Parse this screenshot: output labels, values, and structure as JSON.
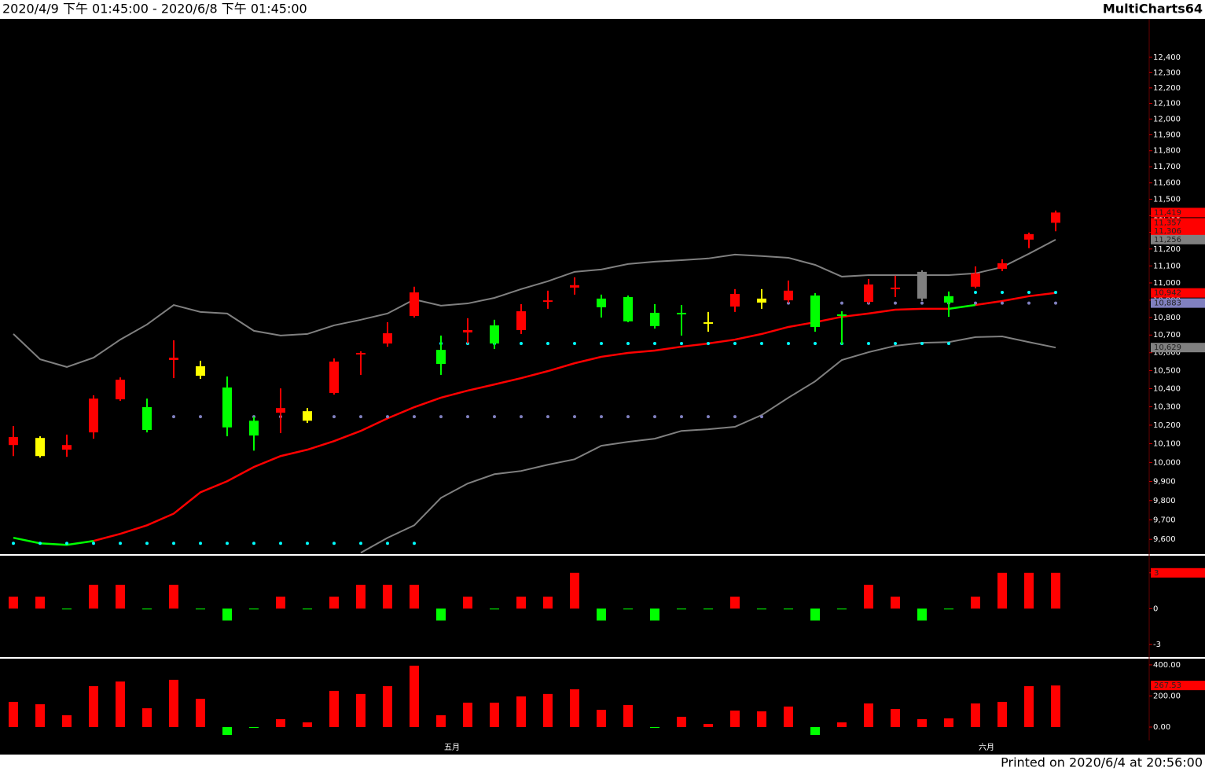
{
  "header": {
    "range": "2020/4/9 下午 01:45:00 - 2020/6/8 下午 01:45:00",
    "brand": "MultiCharts64"
  },
  "footer": "Printed on 2020/6/4 at 20:56:00",
  "chart_data": [
    {
      "type": "candlestick",
      "log": true,
      "ylim": [
        9525,
        12645
      ],
      "categories": [
        null,
        null,
        null,
        null,
        null,
        null,
        null,
        null,
        null,
        null,
        null,
        null,
        null,
        null,
        null,
        null,
        "五月",
        null,
        null,
        null,
        null,
        null,
        null,
        null,
        null,
        null,
        null,
        null,
        null,
        null,
        null,
        null,
        null,
        null,
        null,
        null,
        "六月",
        null,
        null,
        null
      ],
      "open": [
        10093,
        10131,
        10068,
        10161,
        10341,
        10298,
        10559,
        10524,
        10406,
        10224,
        10268,
        10276,
        10376,
        10590,
        10652,
        10809,
        10616,
        10715,
        10755,
        10728,
        10890,
        10973,
        10909,
        10918,
        10827,
        10827,
        10773,
        10863,
        10909,
        10899,
        10927,
        10818,
        10890,
        10964,
        11065,
        10923,
        10978,
        11083,
        11256,
        11357
      ],
      "high": [
        10195,
        10140,
        10149,
        10363,
        10462,
        10345,
        10670,
        10555,
        10467,
        10246,
        10401,
        10293,
        10568,
        10608,
        10773,
        10978,
        10697,
        10796,
        10787,
        10877,
        10955,
        11033,
        10932,
        10927,
        10877,
        10872,
        10832,
        10964,
        10964,
        11014,
        10941,
        10836,
        11023,
        11042,
        11074,
        10950,
        11097,
        11139,
        11298,
        11431
      ],
      "low": [
        10034,
        10026,
        10030,
        10127,
        10332,
        10161,
        10458,
        10454,
        10140,
        10063,
        10157,
        10212,
        10367,
        10476,
        10634,
        10800,
        10476,
        10652,
        10621,
        10706,
        10850,
        10932,
        10800,
        10773,
        10737,
        10697,
        10719,
        10832,
        10850,
        10886,
        10719,
        10647,
        10881,
        10918,
        10895,
        10804,
        10969,
        11069,
        11205,
        11306
      ],
      "close": [
        10136,
        10034,
        10093,
        10345,
        10449,
        10174,
        10572,
        10471,
        10188,
        10144,
        10293,
        10224,
        10550,
        10599,
        10710,
        10945,
        10537,
        10728,
        10652,
        10836,
        10899,
        10987,
        10859,
        10778,
        10751,
        10823,
        10764,
        10936,
        10886,
        10955,
        10746,
        10809,
        10991,
        10973,
        10909,
        10886,
        11056,
        11116,
        11289,
        11419
      ],
      "colors": [
        "#ff0000",
        "#ffff00",
        "#ff0000",
        "#ff0000",
        "#ff0000",
        "#00ff00",
        "#ff0000",
        "#ffff00",
        "#00ff00",
        "#00ff00",
        "#ff0000",
        "#ffff00",
        "#ff0000",
        "#ff0000",
        "#ff0000",
        "#ff0000",
        "#00ff00",
        "#ff0000",
        "#00ff00",
        "#ff0000",
        "#ff0000",
        "#ff0000",
        "#00ff00",
        "#00ff00",
        "#00ff00",
        "#00ff00",
        "#ffff00",
        "#ff0000",
        "#ffff00",
        "#ff0000",
        "#00ff00",
        "#00ff00",
        "#ff0000",
        "#ff0000",
        "#808080",
        "#00ff00",
        "#ff0000",
        "#ff0000",
        "#ff0000",
        "#ff0000"
      ],
      "bands": [
        {
          "color": "#808080",
          "values": [
            10706,
            10563,
            10520,
            10572,
            10674,
            10760,
            10872,
            10832,
            10823,
            10724,
            10697,
            10706,
            10755,
            10787,
            10823,
            10904,
            10868,
            10881,
            10913,
            10964,
            11010,
            11065,
            11079,
            11111,
            11125,
            11134,
            11144,
            11167,
            11158,
            11148,
            11106,
            11037,
            11046,
            11046,
            11046,
            11046,
            11056,
            11093,
            11172,
            11256
          ]
        },
        {
          "color": "#808080",
          "values": [
            null,
            null,
            null,
            null,
            null,
            null,
            null,
            null,
            null,
            null,
            null,
            null,
            null,
            9532,
            9608,
            9672,
            9814,
            9889,
            9938,
            9955,
            9988,
            10017,
            10089,
            10110,
            10127,
            10169,
            10178,
            10191,
            10255,
            10350,
            10440,
            10559,
            10603,
            10639,
            10656,
            10660,
            10688,
            10692,
            10660,
            10629
          ]
        }
      ],
      "middle": {
        "values": [
          9608,
          9580,
          9572,
          9592,
          9628,
          9672,
          9732,
          9843,
          9901,
          9976,
          10034,
          10068,
          10114,
          10169,
          10237,
          10298,
          10350,
          10389,
          10423,
          10458,
          10497,
          10541,
          10577,
          10599,
          10612,
          10634,
          10652,
          10674,
          10706,
          10746,
          10773,
          10804,
          10823,
          10845,
          10850,
          10850,
          10872,
          10895,
          10923,
          10942
        ],
        "colors": [
          "#00ff00",
          "#00ff00",
          "#00ff00",
          "#00ff00",
          "#ff0000",
          "#ff0000",
          "#ff0000",
          "#ff0000",
          "#ff0000",
          "#ff0000",
          "#ff0000",
          "#ff0000",
          "#ff0000",
          "#ff0000",
          "#ff0000",
          "#ff0000",
          "#ff0000",
          "#ff0000",
          "#ff0000",
          "#ff0000",
          "#ff0000",
          "#ff0000",
          "#ff0000",
          "#ff0000",
          "#ff0000",
          "#ff0000",
          "#ff0000",
          "#ff0000",
          "#ff0000",
          "#ff0000",
          "#ff0000",
          "#ff0000",
          "#ff0000",
          "#ff0000",
          "#ff0000",
          "#ff0000",
          "#00ff00",
          "#ff0000",
          "#ff0000",
          "#ff0000"
        ]
      },
      "dots": [
        {
          "color": "#00ffff",
          "values": [
            9580,
            9580,
            9580,
            9580,
            9580,
            9580,
            9580,
            9580,
            9580,
            9580,
            9580,
            9580,
            9580,
            9580,
            9580,
            9580,
            10652,
            10652,
            10652,
            10652,
            10652,
            10652,
            10652,
            10652,
            10652,
            10652,
            10652,
            10652,
            10652,
            10652,
            10652,
            10652,
            10652,
            10652,
            10652,
            10652,
            10945,
            10945,
            10945,
            10945
          ]
        },
        {
          "color": "#8080c0",
          "values": [
            null,
            null,
            null,
            null,
            null,
            10246,
            10246,
            10246,
            10246,
            10246,
            10246,
            10246,
            10246,
            10246,
            10246,
            10246,
            10246,
            10246,
            10246,
            10246,
            10246,
            10246,
            10246,
            10246,
            10246,
            10246,
            10246,
            10246,
            10246,
            10883,
            10883,
            10883,
            10883,
            10883,
            10883,
            10883,
            10883,
            10883,
            10883,
            10883
          ]
        }
      ],
      "markers": [
        {
          "value": 11419,
          "label": "11,419",
          "color": "#ff0000"
        },
        {
          "value": 11357,
          "label": "11,357",
          "color": "#ff0000"
        },
        {
          "value": 11306,
          "label": "11,306",
          "color": "#ff0000"
        },
        {
          "value": 11256,
          "label": "11,256",
          "color": "#808080"
        },
        {
          "value": 10942,
          "label": "10,942",
          "color": "#ff0000"
        },
        {
          "value": 10883,
          "label": "10,883",
          "color": "#8080c0"
        },
        {
          "value": 10629,
          "label": "10,629",
          "color": "#808080"
        }
      ],
      "yticks": [
        {
          "value": 9600,
          "label": "9,600"
        },
        {
          "value": 9700,
          "label": "9,700"
        },
        {
          "value": 9800,
          "label": "9,800"
        },
        {
          "value": 9900,
          "label": "9,900"
        },
        {
          "value": 10000,
          "label": "10,000"
        },
        {
          "value": 10100,
          "label": "10,100"
        },
        {
          "value": 10200,
          "label": "10,200"
        },
        {
          "value": 10300,
          "label": "10,300"
        },
        {
          "value": 10400,
          "label": "10,400"
        },
        {
          "value": 10500,
          "label": "10,500"
        },
        {
          "value": 10600,
          "label": "10,600"
        },
        {
          "value": 10700,
          "label": "10,700"
        },
        {
          "value": 10800,
          "label": "10,800"
        },
        {
          "value": 10900,
          "label": "10,900"
        },
        {
          "value": 11000,
          "label": "11,000"
        },
        {
          "value": 11100,
          "label": "11,100"
        },
        {
          "value": 11200,
          "label": "11,200"
        },
        {
          "value": 11300,
          "label": "11,300"
        },
        {
          "value": 11400,
          "label": "11,400"
        },
        {
          "value": 11500,
          "label": "11,500"
        },
        {
          "value": 11600,
          "label": "11,600"
        },
        {
          "value": 11700,
          "label": "11,700"
        },
        {
          "value": 11800,
          "label": "11,800"
        },
        {
          "value": 11900,
          "label": "11,900"
        },
        {
          "value": 12000,
          "label": "12,000"
        },
        {
          "value": 12100,
          "label": "12,100"
        },
        {
          "value": 12200,
          "label": "12,200"
        },
        {
          "value": 12300,
          "label": "12,300"
        },
        {
          "value": 12400,
          "label": "12,400"
        }
      ]
    },
    {
      "type": "bar",
      "ylim": [
        -4,
        4.37
      ],
      "up_color": "#ff0000",
      "down_color": "#00ff00",
      "values": [
        1,
        1,
        0,
        2,
        2,
        0,
        2,
        0,
        -1,
        0,
        1,
        0,
        1,
        2,
        2,
        2,
        -1,
        1,
        0,
        1,
        1,
        3,
        -1,
        0,
        -1,
        0,
        0,
        1,
        0,
        0,
        -1,
        0,
        2,
        1,
        -1,
        0,
        1,
        3,
        3,
        3
      ],
      "markers": [
        {
          "value": 3,
          "color": "#ff0000"
        }
      ],
      "yticks": [
        3,
        0,
        -3
      ]
    },
    {
      "type": "bar",
      "ylim": [
        -81,
        435
      ],
      "up_color": "#ff0000",
      "down_color": "#00ff00",
      "values": [
        162,
        147,
        76,
        263,
        293,
        121,
        304,
        182,
        -51,
        -5,
        51,
        30,
        233,
        213,
        263,
        395,
        76,
        157,
        157,
        197,
        213,
        243,
        111,
        142,
        0,
        66,
        20,
        106,
        101,
        132,
        -51,
        30,
        152,
        116,
        51,
        56,
        152,
        162,
        263,
        267.53
      ],
      "markers": [
        {
          "value": 267.53,
          "color": "#ff0000"
        }
      ],
      "yticks": [
        {
          "value": 400,
          "label": "400.00"
        },
        {
          "value": 200,
          "label": "200.00"
        },
        {
          "value": 0,
          "label": "0.00"
        }
      ]
    }
  ]
}
